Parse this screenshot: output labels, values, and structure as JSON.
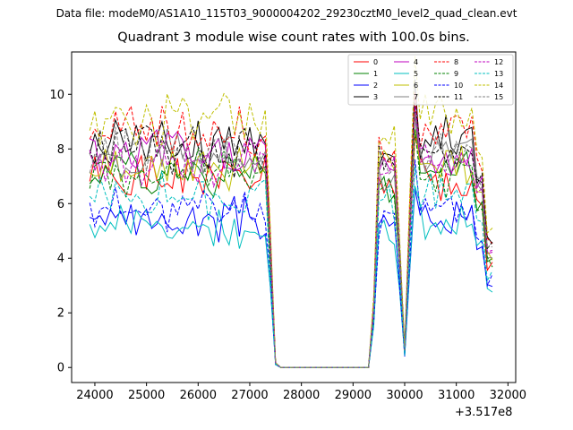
{
  "header": {
    "suptitle": "Data file: modeM0/AS1A10_115T03_9000004202_29230cztM0_level2_quad_clean.evt"
  },
  "chart_data": {
    "type": "line",
    "title": "Quadrant 3 module wise count rates with 100.0s bins.",
    "xlabel": "",
    "ylabel": "",
    "x_offset_label": "+3.517e8",
    "xlim": [
      23550,
      32150
    ],
    "ylim": [
      -0.55,
      11.55
    ],
    "xticks": [
      24000,
      25000,
      26000,
      27000,
      28000,
      29000,
      30000,
      31000,
      32000
    ],
    "xtick_labels": [
      "24000",
      "25000",
      "26000",
      "27000",
      "28000",
      "29000",
      "30000",
      "31000",
      "32000"
    ],
    "yticks": [
      0,
      2,
      4,
      6,
      8,
      10
    ],
    "ytick_labels": [
      "0",
      "2",
      "4",
      "6",
      "8",
      "10"
    ],
    "legend_position": "top-right",
    "x": [
      23900,
      24000,
      24100,
      24200,
      24300,
      24400,
      24500,
      24600,
      24700,
      24800,
      24900,
      25000,
      25100,
      25200,
      25300,
      25400,
      25500,
      25600,
      25700,
      25800,
      25900,
      26000,
      26100,
      26200,
      26300,
      26400,
      26500,
      26600,
      26700,
      26800,
      26900,
      27000,
      27100,
      27200,
      27300,
      27400,
      27500,
      27600,
      27700,
      27800,
      27900,
      28000,
      28100,
      28200,
      28300,
      28400,
      28500,
      28600,
      28700,
      28800,
      28900,
      29000,
      29100,
      29200,
      29300,
      29400,
      29500,
      29600,
      29700,
      29800,
      29900,
      30000,
      30100,
      30200,
      30300,
      30400,
      30500,
      30600,
      30700,
      30800,
      30900,
      31000,
      31100,
      31200,
      31300,
      31400,
      31500,
      31600,
      31700
    ],
    "series": [
      {
        "name": "0",
        "color": "#ff0000",
        "dash": "solid",
        "base": 6.9,
        "seed": 1
      },
      {
        "name": "1",
        "color": "#008000",
        "dash": "solid",
        "base": 7.2,
        "seed": 2
      },
      {
        "name": "2",
        "color": "#0000ff",
        "dash": "solid",
        "base": 5.4,
        "seed": 3
      },
      {
        "name": "3",
        "color": "#000000",
        "dash": "solid",
        "base": 8.3,
        "seed": 4
      },
      {
        "name": "4",
        "color": "#bf00bf",
        "dash": "solid",
        "base": 7.8,
        "seed": 5
      },
      {
        "name": "5",
        "color": "#00bfbf",
        "dash": "solid",
        "base": 5.2,
        "seed": 6
      },
      {
        "name": "6",
        "color": "#bfbf00",
        "dash": "solid",
        "base": 7.4,
        "seed": 7
      },
      {
        "name": "7",
        "color": "#808080",
        "dash": "solid",
        "base": 7.6,
        "seed": 8
      },
      {
        "name": "8",
        "color": "#ff0000",
        "dash": "dashed",
        "base": 8.6,
        "seed": 9
      },
      {
        "name": "9",
        "color": "#008000",
        "dash": "dashed",
        "base": 7.1,
        "seed": 10
      },
      {
        "name": "10",
        "color": "#0000ff",
        "dash": "dashed",
        "base": 5.8,
        "seed": 11
      },
      {
        "name": "11",
        "color": "#000000",
        "dash": "dashed",
        "base": 8.0,
        "seed": 12
      },
      {
        "name": "12",
        "color": "#bf00bf",
        "dash": "dashed",
        "base": 7.5,
        "seed": 13
      },
      {
        "name": "13",
        "color": "#00bfbf",
        "dash": "dashed",
        "base": 6.2,
        "seed": 14
      },
      {
        "name": "14",
        "color": "#bfbf00",
        "dash": "dashed",
        "base": 9.1,
        "seed": 15
      },
      {
        "name": "15",
        "color": "#808080",
        "dash": "dashed",
        "base": 7.9,
        "seed": 16
      }
    ]
  }
}
